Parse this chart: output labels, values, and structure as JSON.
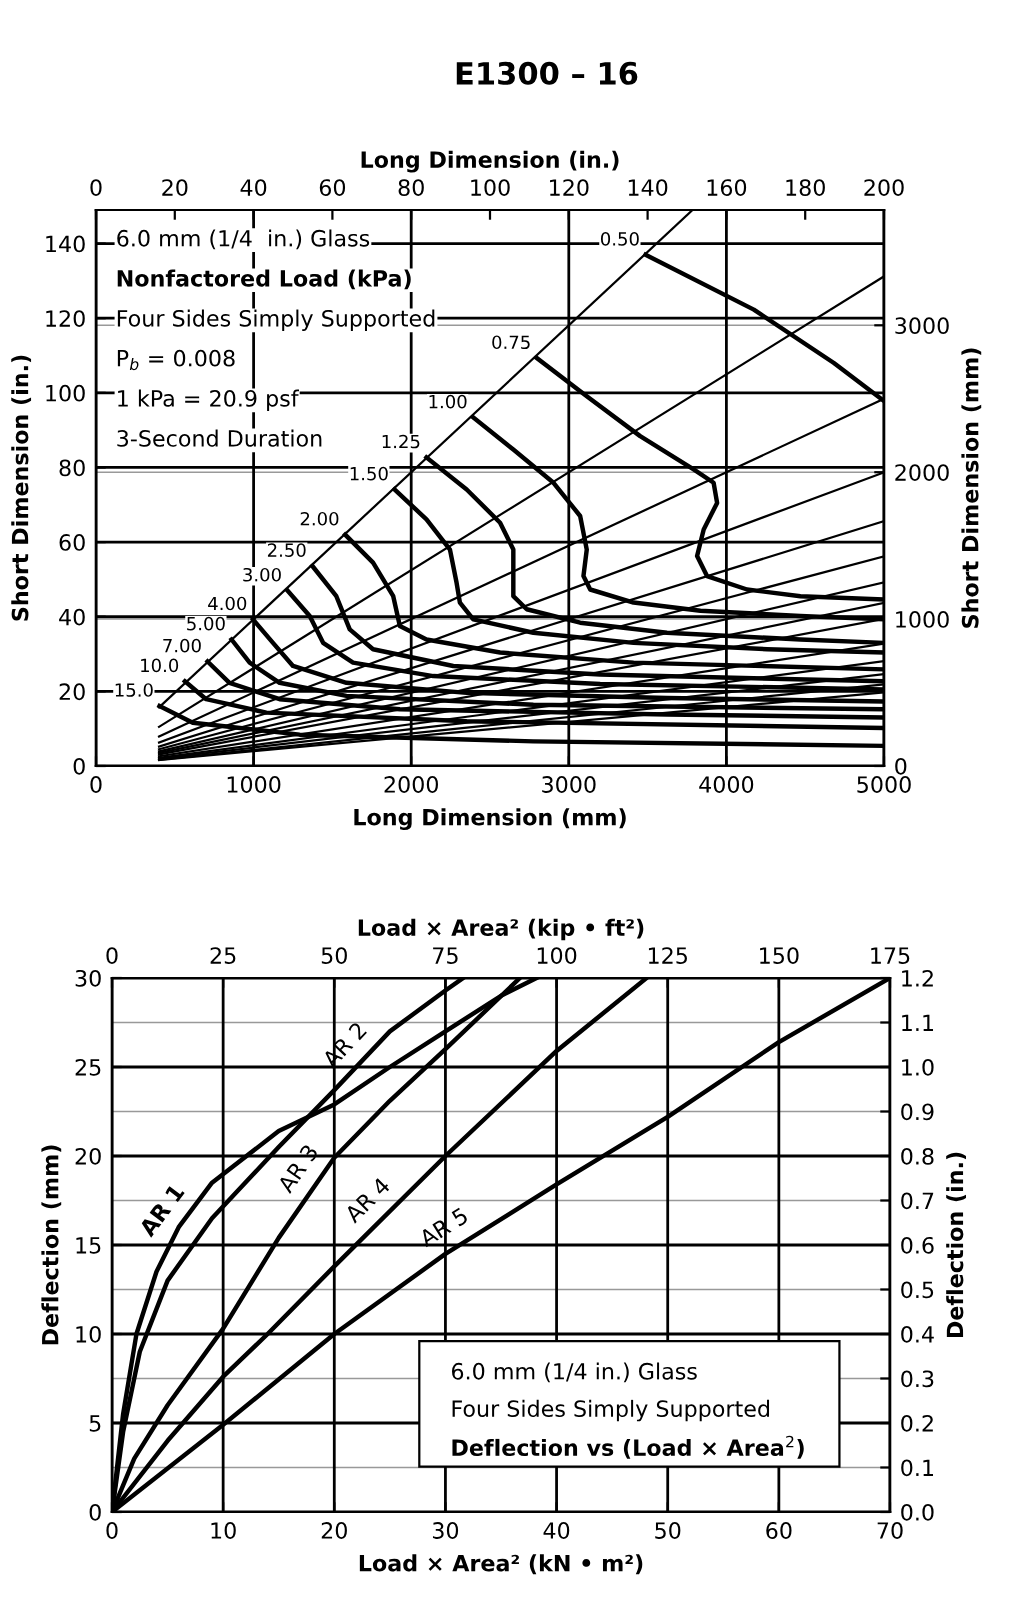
{
  "chart_data": [
    {
      "type": "line",
      "title": "E1300 – 16",
      "xlabel": "Long Dimension (mm)",
      "x2label": "Long Dimension (in.)",
      "ylabel": "Short Dimension (in.)",
      "y2label": "Short Dimension (mm)",
      "xlim": [
        0,
        5000
      ],
      "xticks": [
        0,
        1000,
        2000,
        3000,
        4000,
        5000
      ],
      "x2lim": [
        0,
        200
      ],
      "x2ticks": [
        0,
        20,
        40,
        60,
        80,
        100,
        120,
        140,
        160,
        180,
        200
      ],
      "ylim": [
        0,
        149
      ],
      "yticks": [
        0,
        20,
        40,
        60,
        80,
        100,
        120,
        140
      ],
      "y2lim": [
        0,
        3785
      ],
      "y2ticks": [
        0,
        1000,
        2000,
        3000
      ],
      "grid": true,
      "annotations": [
        "6.0 mm (1/4  in.) Glass",
        "Nonfactored Load (kPa)",
        "Four Sides Simply Supported",
        "P$_{b}$ = 0.008",
        "1 kPa = 20.9 psf",
        "3-Second Duration"
      ],
      "series": [
        {
          "color": "#000000",
          "x": [
            400,
            3785
          ],
          "values": [
            15.7,
            149.0
          ]
        },
        {
          "color": "#000000",
          "x": [
            400,
            5000
          ],
          "values": [
            10.5,
            131.2
          ]
        },
        {
          "color": "#000000",
          "x": [
            400,
            5000
          ],
          "values": [
            7.9,
            98.4
          ]
        },
        {
          "color": "#000000",
          "x": [
            400,
            5000
          ],
          "values": [
            6.3,
            78.7
          ]
        },
        {
          "color": "#000000",
          "x": [
            400,
            5000
          ],
          "values": [
            5.2,
            65.6
          ]
        },
        {
          "color": "#000000",
          "x": [
            400,
            5000
          ],
          "values": [
            4.5,
            56.2
          ]
        },
        {
          "color": "#000000",
          "x": [
            400,
            5000
          ],
          "values": [
            3.9,
            49.2
          ]
        },
        {
          "color": "#000000",
          "x": [
            400,
            5000
          ],
          "values": [
            3.5,
            43.7
          ]
        },
        {
          "color": "#000000",
          "x": [
            400,
            5000
          ],
          "values": [
            3.1,
            39.4
          ]
        },
        {
          "color": "#000000",
          "x": [
            400,
            5000
          ],
          "values": [
            2.6,
            32.8
          ]
        },
        {
          "color": "#000000",
          "x": [
            400,
            5000
          ],
          "values": [
            2.2,
            28.1
          ]
        },
        {
          "color": "#000000",
          "x": [
            400,
            5000
          ],
          "values": [
            2.0,
            24.6
          ]
        },
        {
          "color": "#000000",
          "x": [
            400,
            5000
          ],
          "values": [
            1.7,
            21.9
          ]
        },
        {
          "color": "#000000",
          "x": [
            400,
            5000
          ],
          "values": [
            1.6,
            19.7
          ]
        },
        {
          "name": "0.50",
          "color": "#000000",
          "x": [
            3487,
            4174,
            4682,
            5000
          ],
          "values": [
            137.0,
            122.3,
            108.0,
            97.8
          ]
        },
        {
          "name": "0.75",
          "color": "#000000",
          "x": [
            2797,
            3114,
            3453,
            3792,
            3919,
            3941,
            3856,
            3814,
            3877,
            4131,
            4470,
            5000
          ],
          "values": [
            109.3,
            99.1,
            88.4,
            79.5,
            75.9,
            70.5,
            63.4,
            56.3,
            50.9,
            47.3,
            45.5,
            44.6
          ]
        },
        {
          "name": "1.00",
          "color": "#000000",
          "x": [
            2394,
            2648,
            2903,
            3072,
            3114,
            3093,
            3136,
            3411,
            3835,
            4470,
            5000
          ],
          "values": [
            93.4,
            84.8,
            75.9,
            67.0,
            58.0,
            50.9,
            47.3,
            43.8,
            41.6,
            40.2,
            39.3
          ]
        },
        {
          "name": "1.25",
          "color": "#000000",
          "x": [
            2097,
            2352,
            2564,
            2648,
            2648,
            2733,
            3072,
            3623,
            4470,
            5000
          ],
          "values": [
            82.7,
            74.1,
            65.2,
            58.0,
            45.5,
            42.0,
            38.4,
            35.7,
            33.9,
            33.0
          ]
        },
        {
          "name": "1.50",
          "color": "#000000",
          "x": [
            1894,
            2097,
            2246,
            2288,
            2309,
            2394,
            2775,
            3411,
            4258,
            5000
          ],
          "values": [
            74.1,
            66.1,
            58.0,
            49.1,
            43.8,
            39.3,
            35.7,
            33.0,
            31.3,
            30.4
          ]
        },
        {
          "name": "2.00",
          "color": "#000000",
          "x": [
            1581,
            1758,
            1886,
            1928,
            2097,
            2564,
            3411,
            5000
          ],
          "values": [
            62.0,
            54.5,
            45.5,
            37.5,
            33.9,
            30.4,
            27.7,
            25.9
          ]
        },
        {
          "name": "2.50",
          "color": "#000000",
          "x": [
            1373,
            1525,
            1610,
            1758,
            2267,
            3199,
            5000
          ],
          "values": [
            53.6,
            45.5,
            36.6,
            31.3,
            26.8,
            24.5,
            22.7
          ]
        },
        {
          "name": "3.00",
          "color": "#000000",
          "x": [
            1216,
            1356,
            1441,
            1631,
            2140,
            3199,
            5000
          ],
          "values": [
            47.0,
            40.2,
            33.0,
            27.7,
            24.1,
            22.0,
            20.5
          ]
        },
        {
          "name": "4.00",
          "color": "#000000",
          "x": [
            996,
            1123,
            1250,
            1589,
            2352,
            3623,
            5000
          ],
          "values": [
            39.3,
            33.0,
            26.8,
            22.3,
            19.6,
            18.2,
            17.3
          ]
        },
        {
          "name": "5.00",
          "color": "#000000",
          "x": [
            860,
            975,
            1165,
            1589,
            2775,
            5000
          ],
          "values": [
            33.9,
            27.7,
            22.3,
            18.8,
            16.4,
            15.2
          ]
        },
        {
          "name": "7.00",
          "color": "#000000",
          "x": [
            708,
            847,
            1165,
            1928,
            3623,
            5000
          ],
          "values": [
            28.0,
            22.3,
            17.9,
            15.2,
            13.8,
            13.0
          ]
        },
        {
          "name": "10.0",
          "color": "#000000",
          "x": [
            564,
            699,
            1081,
            2352,
            5000
          ],
          "values": [
            22.7,
            17.9,
            14.3,
            12.0,
            10.2
          ]
        },
        {
          "name": "15.0",
          "color": "#000000",
          "x": [
            403,
            614,
            1292,
            2775,
            5000
          ],
          "values": [
            16.1,
            11.6,
            8.4,
            6.6,
            5.4
          ]
        }
      ]
    },
    {
      "type": "line",
      "xlabel": "Load × Area² (kN • m²)",
      "x2label": "Load × Area² (kip • ft²)",
      "ylabel": "Deflection (mm)",
      "y2label": "Deflection (in.)",
      "xlim": [
        0,
        70
      ],
      "xticks": [
        0,
        10,
        20,
        30,
        40,
        50,
        60,
        70
      ],
      "x2lim": [
        0,
        175
      ],
      "x2ticks": [
        0,
        25,
        50,
        75,
        100,
        125,
        150,
        175
      ],
      "ylim": [
        0,
        30
      ],
      "yticks": [
        0,
        5,
        10,
        15,
        20,
        25,
        30
      ],
      "y2lim": [
        0,
        1.2
      ],
      "y2ticks": [
        {
          "value": 0,
          "label": "0.0"
        },
        0.1,
        0.2,
        0.3,
        0.4,
        0.5,
        0.6,
        0.7,
        0.8,
        0.9,
        {
          "value": 1,
          "label": "1.0"
        },
        1.1,
        1.2
      ],
      "grid": true,
      "annotations": [
        "6.0 mm (1/4 in.) Glass",
        "Four Sides Simply Supported",
        "Deflection vs (Load × Area$^{2}$)"
      ],
      "series": [
        {
          "name": "AR 1",
          "color": "#000000",
          "x": [
            0,
            1,
            2.2,
            4,
            6,
            9,
            15,
            20,
            25,
            30,
            35,
            38.2
          ],
          "values": [
            0,
            5.5,
            10,
            13.5,
            16,
            18.5,
            21.4,
            22.9,
            25.0,
            27.0,
            29.0,
            30
          ]
        },
        {
          "name": "AR 2",
          "color": "#000000",
          "x": [
            0,
            1,
            2.5,
            5,
            9,
            15,
            20,
            25,
            30,
            31.6
          ],
          "values": [
            0,
            4.5,
            9,
            13,
            16.5,
            20.5,
            23.7,
            27.0,
            29.3,
            30
          ]
        },
        {
          "name": "AR 3",
          "color": "#000000",
          "x": [
            0,
            2,
            5,
            10,
            15,
            20,
            25,
            30,
            36.7
          ],
          "values": [
            0,
            3,
            6,
            10.3,
            15.4,
            19.9,
            23.1,
            26.0,
            30
          ]
        },
        {
          "name": "AR 4",
          "color": "#000000",
          "x": [
            0,
            5,
            10,
            14,
            20,
            30,
            40,
            48.1
          ],
          "values": [
            0,
            4,
            7.6,
            10.0,
            13.8,
            20,
            25.9,
            30
          ]
        },
        {
          "name": "AR 5",
          "color": "#000000",
          "x": [
            0,
            10,
            20,
            30,
            40,
            50,
            60,
            70
          ],
          "values": [
            0,
            4.9,
            10,
            14.5,
            18.4,
            22.2,
            26.4,
            30
          ]
        }
      ]
    }
  ]
}
